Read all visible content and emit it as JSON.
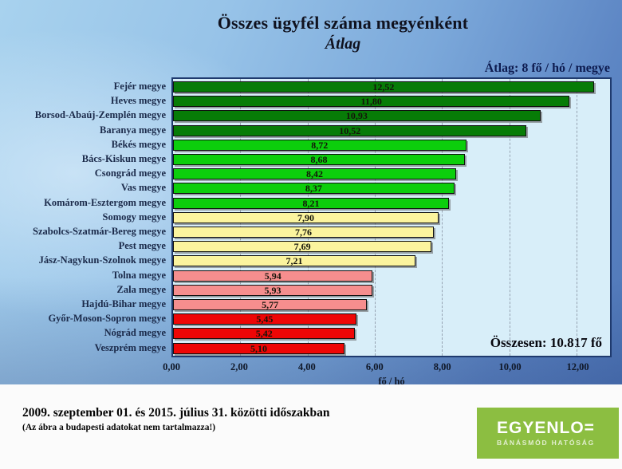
{
  "title": {
    "line1": "Összes ügyfél száma megyénként",
    "line2": "Átlag"
  },
  "avg_note": "Átlag: 8 fő / hó / megye",
  "total_note": "Összesen: 10.817 fő",
  "chart_data": {
    "type": "bar",
    "orientation": "horizontal",
    "title": "Összes ügyfél száma megyénként — Átlag",
    "xlabel": "fő / hó",
    "xlim": [
      0,
      13
    ],
    "grid": "vertical-dashed",
    "categories": [
      "Fejér megye",
      "Heves megye",
      "Borsod-Abaúj-Zemplén megye",
      "Baranya megye",
      "Békés megye",
      "Bács-Kiskun megye",
      "Csongrád megye",
      "Vas megye",
      "Komárom-Esztergom megye",
      "Somogy megye",
      "Szabolcs-Szatmár-Bereg megye",
      "Pest megye",
      "Jász-Nagykun-Szolnok megye",
      "Tolna megye",
      "Zala megye",
      "Hajdú-Bihar megye",
      "Győr-Moson-Sopron megye",
      "Nógrád megye",
      "Veszprém megye"
    ],
    "values": [
      12.52,
      11.8,
      10.93,
      10.52,
      8.72,
      8.68,
      8.42,
      8.37,
      8.21,
      7.9,
      7.76,
      7.69,
      7.21,
      5.94,
      5.93,
      5.77,
      5.45,
      5.42,
      5.1
    ],
    "value_labels": [
      "12,52",
      "11,80",
      "10,93",
      "10,52",
      "8,72",
      "8,68",
      "8,42",
      "8,37",
      "8,21",
      "7,90",
      "7,76",
      "7,69",
      "7,21",
      "5,94",
      "5,93",
      "5,77",
      "5,45",
      "5,42",
      "5,10"
    ],
    "bar_colors": [
      "#077C07",
      "#077C07",
      "#077C07",
      "#077C07",
      "#0CCE0C",
      "#0CCE0C",
      "#0CCE0C",
      "#0CCE0C",
      "#0CCE0C",
      "#FBF49E",
      "#FBF49E",
      "#FBF49E",
      "#FBF49E",
      "#F68E8E",
      "#F68E8E",
      "#F68E8E",
      "#EE0606",
      "#EE0606",
      "#EE0606"
    ],
    "tick_values": [
      0,
      2,
      4,
      6,
      8,
      10,
      12
    ],
    "x_ticks": [
      "0,00",
      "2,00",
      "4,00",
      "6,00",
      "8,00",
      "10,00",
      "12,00"
    ]
  },
  "footer": {
    "line1": "2009. szeptember 01. és 2015. július 31. közötti időszakban",
    "line2": "(Az ábra a budapesti adatokat nem tartalmazza!)"
  },
  "logo": {
    "line1": "EGYENLO=",
    "line2": "BÁNÁSMÓD HATÓSÁG"
  },
  "colors": {
    "slide_bg_light": "#A8D2EE",
    "slide_bg_dark": "#4F77B8",
    "plot_bg": "#D8EEF9",
    "plot_border": "#1F3A6E",
    "navy_text": "#0D1B4F",
    "logo_green": "#8CBE41",
    "group_dark_green": "#077C07",
    "group_green": "#0CCE0C",
    "group_yellow": "#FBF49E",
    "group_pink": "#F68E8E",
    "group_red": "#EE0606"
  }
}
